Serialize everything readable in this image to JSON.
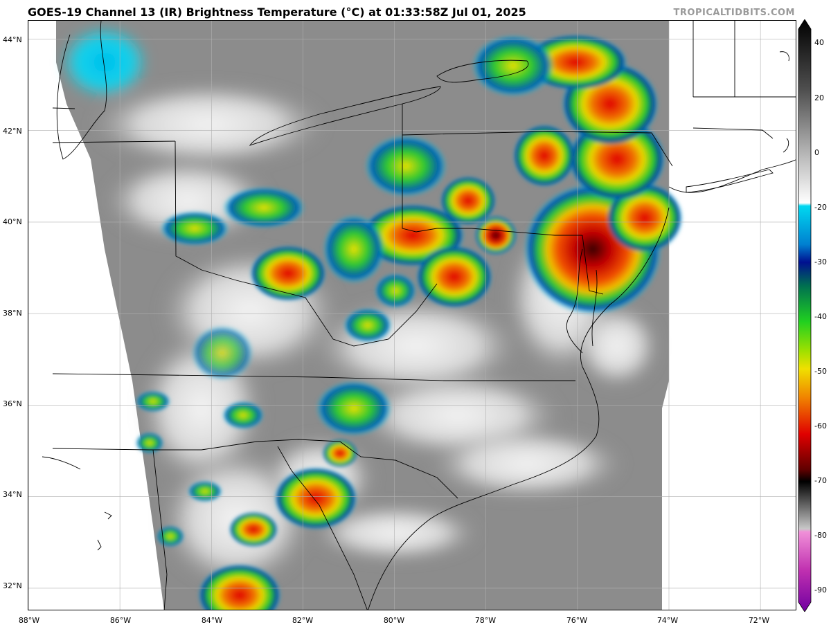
{
  "header": {
    "title": "GOES-19 Channel 13 (IR) Brightness Temperature (°C) at 01:33:58Z Jul 01, 2025",
    "credit": "TROPICALTIDBITS.COM"
  },
  "map": {
    "lat_ticks": [
      "44°N",
      "42°N",
      "40°N",
      "38°N",
      "36°N",
      "34°N",
      "32°N"
    ],
    "lon_ticks": [
      "88°W",
      "86°W",
      "84°W",
      "82°W",
      "80°W",
      "78°W",
      "76°W",
      "74°W",
      "72°W"
    ],
    "extent": {
      "lon_min": -88.0,
      "lon_max": -71.2,
      "lat_min": 31.5,
      "lat_max": 44.4
    },
    "storm_cells": [
      {
        "name": "chesapeake-complex",
        "lon": -75.9,
        "lat": 39.6,
        "intensity": "very-cold"
      },
      {
        "name": "central-pa-cell",
        "lon": -76.8,
        "lat": 41.8,
        "intensity": "cold"
      },
      {
        "name": "northern-pa-band",
        "lon": -75.5,
        "lat": 42.5,
        "intensity": "cold"
      },
      {
        "name": "wv-cell-north",
        "lon": -80.0,
        "lat": 39.7,
        "intensity": "cold"
      },
      {
        "name": "va-band",
        "lon": -78.7,
        "lat": 39.0,
        "intensity": "cold"
      },
      {
        "name": "md-cell",
        "lon": -77.8,
        "lat": 39.7,
        "intensity": "very-cold"
      },
      {
        "name": "pa-cell-west",
        "lon": -78.4,
        "lat": 40.5,
        "intensity": "cold"
      },
      {
        "name": "ohio-cell",
        "lon": -82.2,
        "lat": 39.0,
        "intensity": "cold"
      },
      {
        "name": "sc-cell",
        "lon": -81.8,
        "lat": 34.1,
        "intensity": "cold"
      },
      {
        "name": "ga-cell",
        "lon": -83.5,
        "lat": 31.9,
        "intensity": "cold"
      }
    ]
  },
  "colorbar": {
    "ticks": [
      "40",
      "20",
      "0",
      "-20",
      "-30",
      "-40",
      "-50",
      "-60",
      "-70",
      "-80",
      "-90"
    ],
    "colors": {
      "warm_top": "#000000",
      "zero": "#ffffff",
      "cyan": "#00d8f0",
      "blue": "#0010a0",
      "green": "#1ed01e",
      "yellow": "#f0e000",
      "orange": "#f08000",
      "red": "#e00000",
      "dark_red": "#500000",
      "pink": "#e050c0",
      "purple": "#8000a0"
    }
  }
}
